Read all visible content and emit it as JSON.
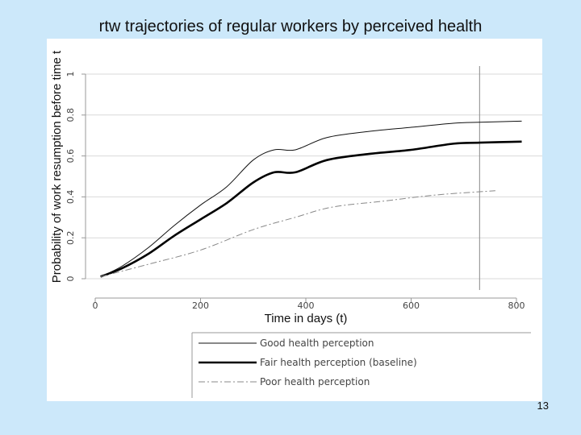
{
  "slide": {
    "title": "rtw trajectories of regular workers by perceived health",
    "page_number": "13"
  },
  "chart_data": {
    "type": "line",
    "title": "rtw trajectories of regular workers by perceived health",
    "xlabel": "Time in days (t)",
    "ylabel": "Probability of work resumption before time t",
    "xlim": [
      0,
      800
    ],
    "ylim": [
      0,
      1
    ],
    "x_ticks": [
      0,
      200,
      400,
      600,
      800
    ],
    "x_tick_labels": [
      "0",
      "200",
      "400",
      "600",
      "800"
    ],
    "y_ticks": [
      0,
      0.2,
      0.4,
      0.6,
      0.8,
      1
    ],
    "y_tick_labels": [
      "0",
      "0.2",
      "0.4",
      "0.6",
      "0.8",
      "1"
    ],
    "grid": "horizontal",
    "vertical_reference_line_x": 730,
    "legend_position": "bottom",
    "series": [
      {
        "name": "Good health perception",
        "style": "thin-solid",
        "color": "#111111",
        "x": [
          10,
          50,
          100,
          150,
          200,
          250,
          300,
          340,
          380,
          440,
          520,
          600,
          680,
          730,
          810
        ],
        "y": [
          0.01,
          0.06,
          0.15,
          0.26,
          0.36,
          0.45,
          0.58,
          0.63,
          0.63,
          0.69,
          0.72,
          0.74,
          0.76,
          0.765,
          0.77
        ]
      },
      {
        "name": "Fair health perception (baseline)",
        "style": "thick-solid",
        "color": "#000000",
        "x": [
          10,
          50,
          100,
          150,
          200,
          250,
          300,
          340,
          380,
          440,
          520,
          600,
          680,
          730,
          810
        ],
        "y": [
          0.01,
          0.05,
          0.12,
          0.21,
          0.29,
          0.37,
          0.47,
          0.52,
          0.52,
          0.58,
          0.61,
          0.63,
          0.66,
          0.665,
          0.67
        ]
      },
      {
        "name": "Poor health perception",
        "style": "dash-dot",
        "color": "#888888",
        "x": [
          10,
          100,
          200,
          300,
          380,
          450,
          550,
          650,
          760
        ],
        "y": [
          0.01,
          0.07,
          0.14,
          0.24,
          0.3,
          0.35,
          0.38,
          0.41,
          0.43
        ]
      }
    ]
  }
}
